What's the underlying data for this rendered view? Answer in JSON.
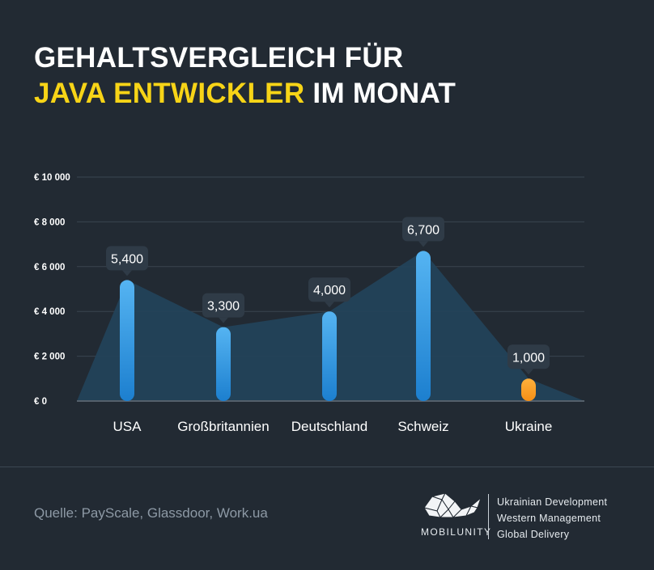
{
  "title": {
    "line1": "GEHALTSVERGLEICH FÜR",
    "highlight": "JAVA ENTWICKLER",
    "line2_rest": " IM MONAT"
  },
  "chart_data": {
    "type": "bar",
    "categories": [
      "USA",
      "Großbritannien",
      "Deutschland",
      "Schweiz",
      "Ukraine"
    ],
    "values": [
      5400,
      3300,
      4000,
      6700,
      1000
    ],
    "value_labels": [
      "5,400",
      "3,300",
      "4,000",
      "6,700",
      "1,000"
    ],
    "y_ticks": [
      0,
      2000,
      4000,
      6000,
      8000,
      10000
    ],
    "y_tick_labels": [
      "€ 0",
      "€ 2 000",
      "€ 4 000",
      "€ 6 000",
      "€ 8 000",
      "€ 10 000"
    ],
    "ylim": [
      0,
      10000
    ],
    "grid": true,
    "bar_colors": [
      "#2b8fdc",
      "#2b8fdc",
      "#2b8fdc",
      "#2b8fdc",
      "#f5a623"
    ],
    "area_color": "#23425a",
    "title": "",
    "xlabel": "",
    "ylabel": ""
  },
  "footer": {
    "source": "Quelle: PayScale, Glassdoor, Work.ua",
    "brand": "MOBILUNITY",
    "taglines": [
      "Ukrainian Development",
      "Western Management",
      "Global Delivery"
    ]
  }
}
